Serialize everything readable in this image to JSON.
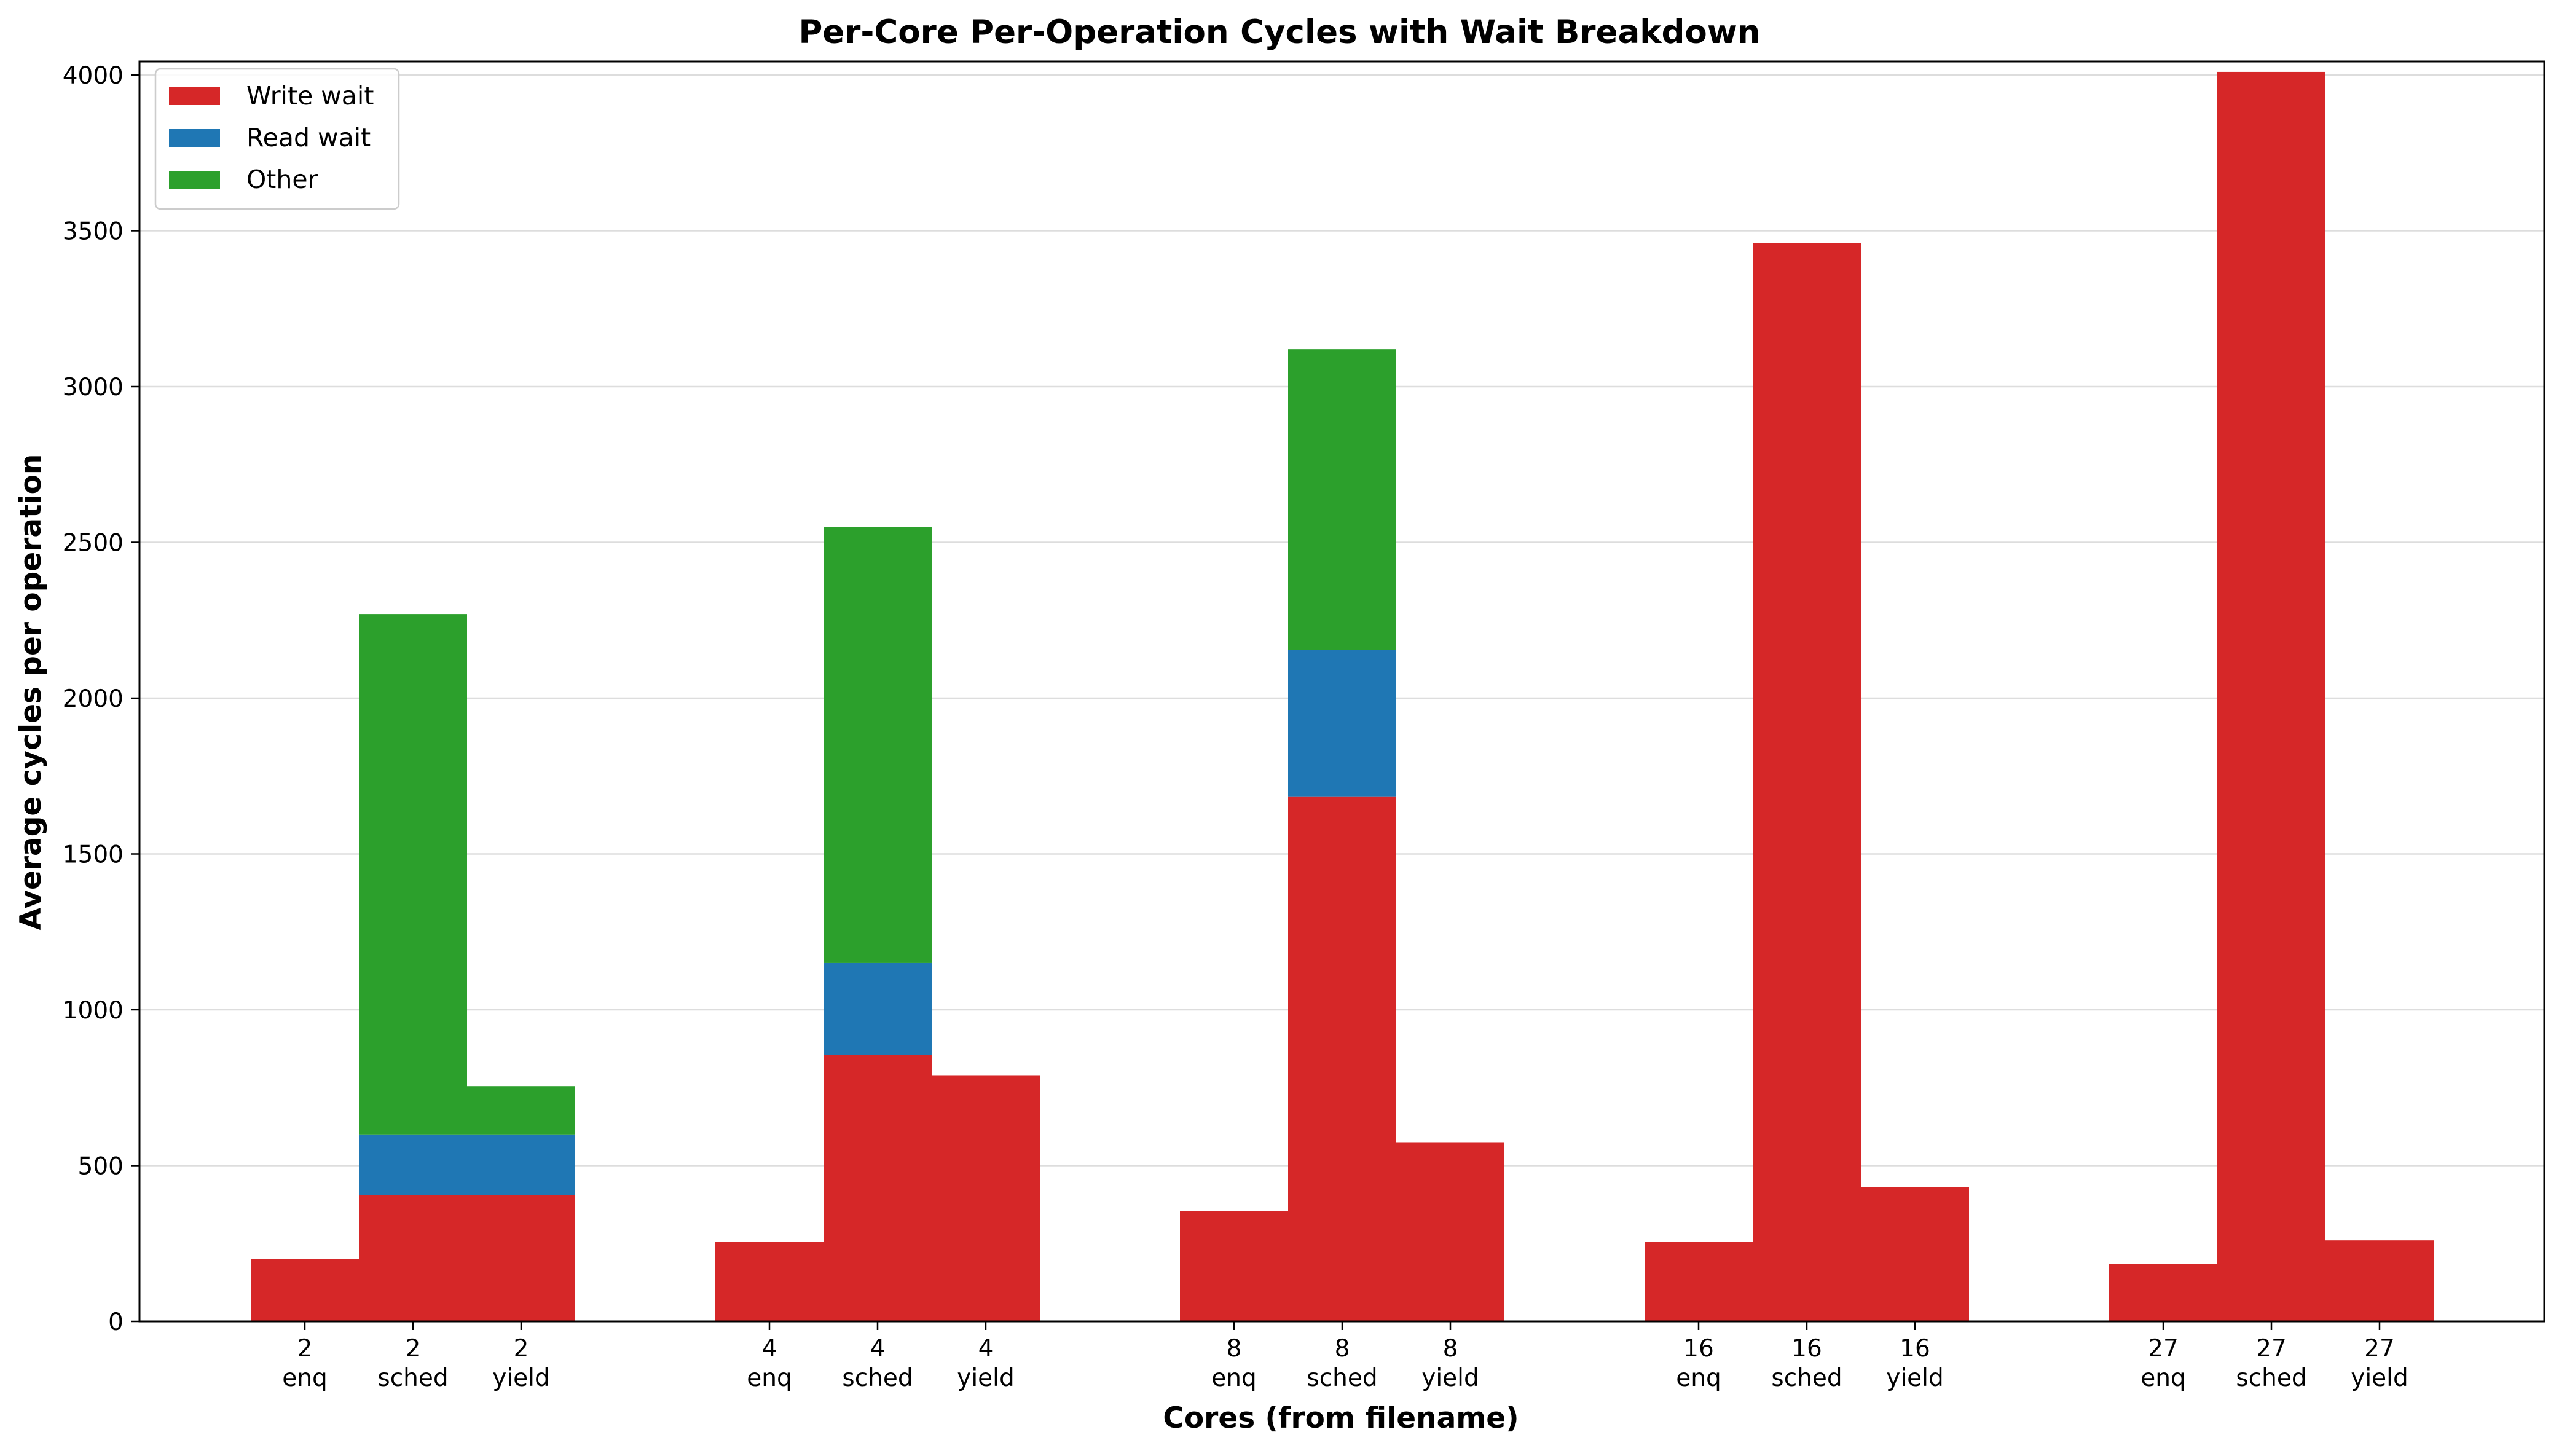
{
  "chart_data": {
    "type": "bar",
    "stacked": true,
    "title": "Per-Core Per-Operation Cycles with Wait Breakdown",
    "xlabel": "Cores (from filename)",
    "ylabel": "Average cycles per operation",
    "ylim": [
      0,
      4000
    ],
    "yticks": [
      0,
      500,
      1000,
      1500,
      2000,
      2500,
      3000,
      3500,
      4000
    ],
    "grid": "y",
    "legend_position": "top-left",
    "groups": [
      "2",
      "4",
      "8",
      "16",
      "27"
    ],
    "operations": [
      "enq",
      "sched",
      "yield"
    ],
    "categories": [
      [
        "2",
        "enq"
      ],
      [
        "2",
        "sched"
      ],
      [
        "2",
        "yield"
      ],
      [
        "4",
        "enq"
      ],
      [
        "4",
        "sched"
      ],
      [
        "4",
        "yield"
      ],
      [
        "8",
        "enq"
      ],
      [
        "8",
        "sched"
      ],
      [
        "8",
        "yield"
      ],
      [
        "16",
        "enq"
      ],
      [
        "16",
        "sched"
      ],
      [
        "16",
        "yield"
      ],
      [
        "27",
        "enq"
      ],
      [
        "27",
        "sched"
      ],
      [
        "27",
        "yield"
      ]
    ],
    "series": [
      {
        "name": "Write wait",
        "color": "#d62728",
        "values": [
          200,
          405,
          405,
          255,
          855,
          790,
          355,
          1685,
          575,
          255,
          3460,
          430,
          185,
          4010,
          260
        ]
      },
      {
        "name": "Read wait",
        "color": "#1f77b4",
        "values": [
          0,
          195,
          195,
          0,
          295,
          0,
          0,
          470,
          0,
          0,
          0,
          0,
          0,
          0,
          0
        ]
      },
      {
        "name": "Other",
        "color": "#2ca02c",
        "values": [
          0,
          1670,
          155,
          0,
          1400,
          0,
          0,
          965,
          0,
          0,
          0,
          0,
          0,
          0,
          0
        ]
      }
    ]
  }
}
